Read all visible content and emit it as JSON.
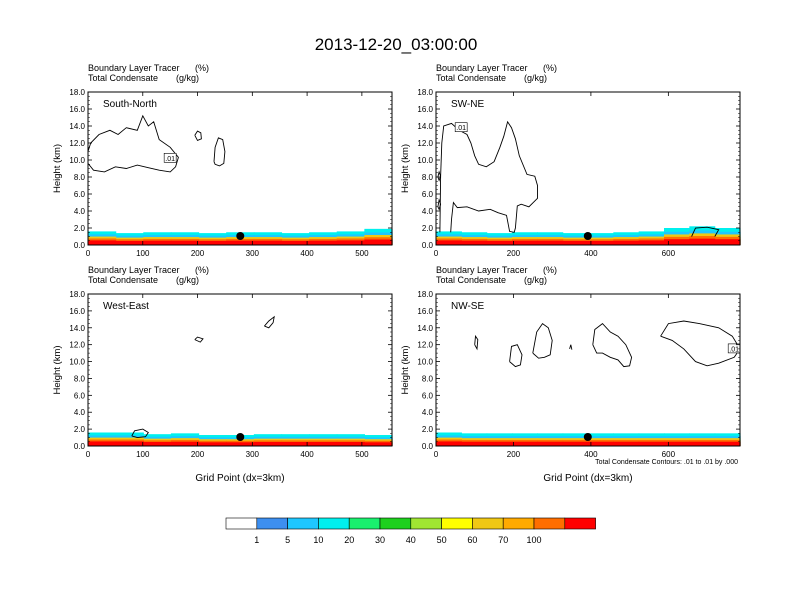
{
  "figure": {
    "title": "2013-12-20_03:00:00",
    "footnote": "Total Condensate Contours: .01 to .01 by .000"
  },
  "chart_data": [
    {
      "type": "heatmap",
      "panel": "South-North",
      "subtitle_left": "Boundary Layer Tracer",
      "subtitle_left_unit": "(%)",
      "subtitle_left2": "Total Condensate",
      "subtitle_left2_unit": "(g/kg)",
      "xlabel": "",
      "ylabel": "Height (km)",
      "xlim": [
        0,
        555
      ],
      "ylim": [
        0,
        18
      ],
      "xticks": [
        "0",
        "100",
        "200",
        "300",
        "400",
        "500"
      ],
      "xtick_values": [
        0,
        100,
        200,
        300,
        400,
        500
      ],
      "yticks": [
        "0.0",
        "2.0",
        "4.0",
        "6.0",
        "8.0",
        "10.0",
        "12.0",
        "14.0",
        "16.0",
        "18.0"
      ],
      "tracer_top_km": [
        1.6,
        1.4,
        1.5,
        1.5,
        1.4,
        1.5,
        1.5,
        1.4,
        1.5,
        1.6,
        1.9
      ],
      "marker_x": 278,
      "contour_label": ".01",
      "contour_label_x": 150,
      "contour_label_y": 10.2,
      "contours": [
        [
          [
            0,
            9.6
          ],
          [
            10,
            8.8
          ],
          [
            30,
            8.6
          ],
          [
            50,
            9.2
          ],
          [
            70,
            9.0
          ],
          [
            90,
            9.4
          ],
          [
            110,
            9.1
          ],
          [
            130,
            8.8
          ],
          [
            150,
            8.6
          ],
          [
            160,
            9.2
          ],
          [
            165,
            10.3
          ],
          [
            150,
            11.5
          ],
          [
            130,
            12.4
          ],
          [
            120,
            14.5
          ],
          [
            110,
            14.0
          ],
          [
            100,
            15.2
          ],
          [
            90,
            13.5
          ],
          [
            70,
            13.8
          ],
          [
            55,
            13.0
          ],
          [
            40,
            13.5
          ],
          [
            20,
            13.0
          ],
          [
            5,
            12.0
          ],
          [
            0,
            11.0
          ]
        ],
        [
          [
            195,
            12.9
          ],
          [
            200,
            13.4
          ],
          [
            206,
            13.2
          ],
          [
            207,
            12.5
          ],
          [
            200,
            12.3
          ],
          [
            195,
            12.9
          ]
        ],
        [
          [
            230,
            9.8
          ],
          [
            232,
            11.5
          ],
          [
            238,
            12.6
          ],
          [
            246,
            12.4
          ],
          [
            250,
            11.0
          ],
          [
            248,
            9.6
          ],
          [
            240,
            9.3
          ],
          [
            232,
            9.5
          ],
          [
            230,
            9.8
          ]
        ]
      ]
    },
    {
      "type": "heatmap",
      "panel": "SW-NE",
      "subtitle_left": "Boundary Layer Tracer",
      "subtitle_left_unit": "(%)",
      "subtitle_left2": "Total Condensate",
      "subtitle_left2_unit": "(g/kg)",
      "xlabel": "",
      "ylabel": "Height (km)",
      "xlim": [
        0,
        785
      ],
      "ylim": [
        0,
        18
      ],
      "xticks": [
        "0",
        "200",
        "400",
        "600"
      ],
      "xtick_values": [
        0,
        200,
        400,
        600
      ],
      "yticks": [
        "0.0",
        "2.0",
        "4.0",
        "6.0",
        "8.0",
        "10.0",
        "12.0",
        "14.0",
        "16.0",
        "18.0"
      ],
      "tracer_top_km": [
        1.6,
        1.5,
        1.4,
        1.5,
        1.5,
        1.4,
        1.4,
        1.5,
        1.6,
        2.0,
        2.2,
        2.0
      ],
      "marker_x": 392,
      "contour_label": ".01",
      "contour_label_x": 65,
      "contour_label_y": 13.8,
      "contours": [
        [
          [
            10,
            1.5
          ],
          [
            12,
            8.0
          ],
          [
            15,
            12.0
          ],
          [
            20,
            14.0
          ],
          [
            40,
            14.3
          ],
          [
            60,
            13.5
          ],
          [
            80,
            13.0
          ],
          [
            90,
            12.0
          ],
          [
            100,
            10.5
          ],
          [
            110,
            9.5
          ],
          [
            130,
            9.2
          ],
          [
            150,
            9.8
          ],
          [
            165,
            11.5
          ],
          [
            175,
            12.8
          ],
          [
            185,
            14.5
          ],
          [
            195,
            13.8
          ],
          [
            205,
            12.5
          ],
          [
            215,
            10.5
          ],
          [
            235,
            8.3
          ],
          [
            255,
            8.1
          ],
          [
            262,
            7.0
          ],
          [
            262,
            5.5
          ],
          [
            240,
            4.5
          ],
          [
            220,
            4.8
          ],
          [
            210,
            4.6
          ],
          [
            205,
            2.0
          ],
          [
            202,
            1.5
          ],
          [
            190,
            1.6
          ],
          [
            182,
            3.5
          ],
          [
            160,
            3.8
          ],
          [
            140,
            4.2
          ],
          [
            110,
            4.0
          ],
          [
            80,
            4.5
          ],
          [
            55,
            4.4
          ],
          [
            45,
            5.0
          ],
          [
            40,
            3.0
          ],
          [
            38,
            1.5
          ]
        ],
        [
          [
            5,
            4.5
          ],
          [
            8,
            5.3
          ],
          [
            12,
            4.8
          ],
          [
            8,
            4.2
          ],
          [
            5,
            4.5
          ]
        ],
        [
          [
            5,
            8.0
          ],
          [
            8,
            8.6
          ],
          [
            12,
            8.1
          ],
          [
            8,
            7.6
          ],
          [
            5,
            8.0
          ]
        ],
        [
          [
            660,
            1.0
          ],
          [
            670,
            2.0
          ],
          [
            700,
            2.1
          ],
          [
            730,
            1.8
          ],
          [
            720,
            1.0
          ]
        ]
      ]
    },
    {
      "type": "heatmap",
      "panel": "West-East",
      "subtitle_left": "Boundary Layer Tracer",
      "subtitle_left_unit": "(%)",
      "subtitle_left2": "Total Condensate",
      "subtitle_left2_unit": "(g/kg)",
      "xlabel": "Grid Point (dx=3km)",
      "ylabel": "Height (km)",
      "xlim": [
        0,
        555
      ],
      "ylim": [
        0,
        18
      ],
      "xticks": [
        "0",
        "100",
        "200",
        "300",
        "400",
        "500"
      ],
      "xtick_values": [
        0,
        100,
        200,
        300,
        400,
        500
      ],
      "yticks": [
        "0.0",
        "2.0",
        "4.0",
        "6.0",
        "8.0",
        "10.0",
        "12.0",
        "14.0",
        "16.0",
        "18.0"
      ],
      "tracer_top_km": [
        1.6,
        1.6,
        1.4,
        1.5,
        1.3,
        1.3,
        1.4,
        1.4,
        1.4,
        1.4,
        1.3
      ],
      "marker_x": 278,
      "contour_label": "",
      "contours": [
        [
          [
            80,
            1.2
          ],
          [
            85,
            1.8
          ],
          [
            100,
            2.0
          ],
          [
            110,
            1.6
          ],
          [
            105,
            1.1
          ],
          [
            90,
            1.0
          ],
          [
            80,
            1.2
          ]
        ],
        [
          [
            195,
            12.6
          ],
          [
            200,
            12.9
          ],
          [
            210,
            12.7
          ],
          [
            205,
            12.3
          ],
          [
            195,
            12.6
          ]
        ],
        [
          [
            322,
            14.2
          ],
          [
            330,
            14.8
          ],
          [
            340,
            15.3
          ],
          [
            338,
            14.6
          ],
          [
            330,
            14.0
          ],
          [
            322,
            14.2
          ]
        ]
      ]
    },
    {
      "type": "heatmap",
      "panel": "NW-SE",
      "subtitle_left": "Boundary Layer Tracer",
      "subtitle_left_unit": "(%)",
      "subtitle_left2": "Total Condensate",
      "subtitle_left2_unit": "(g/kg)",
      "xlabel": "Grid Point (dx=3km)",
      "ylabel": "Height (km)",
      "xlim": [
        0,
        785
      ],
      "ylim": [
        0,
        18
      ],
      "xticks": [
        "0",
        "200",
        "400",
        "600"
      ],
      "xtick_values": [
        0,
        200,
        400,
        600
      ],
      "yticks": [
        "0.0",
        "2.0",
        "4.0",
        "6.0",
        "8.0",
        "10.0",
        "12.0",
        "14.0",
        "16.0",
        "18.0"
      ],
      "tracer_top_km": [
        1.6,
        1.5,
        1.5,
        1.5,
        1.5,
        1.5,
        1.5,
        1.5,
        1.5,
        1.5,
        1.5,
        1.5
      ],
      "marker_x": 392,
      "contour_label": ".01",
      "contour_label_x": 770,
      "contour_label_y": 11.5,
      "contours": [
        [
          [
            100,
            12.0
          ],
          [
            102,
            13.0
          ],
          [
            108,
            12.6
          ],
          [
            106,
            11.5
          ],
          [
            100,
            12.0
          ]
        ],
        [
          [
            190,
            10.0
          ],
          [
            195,
            11.8
          ],
          [
            210,
            12.0
          ],
          [
            222,
            10.8
          ],
          [
            218,
            9.6
          ],
          [
            205,
            9.4
          ],
          [
            190,
            10.0
          ]
        ],
        [
          [
            250,
            11.0
          ],
          [
            260,
            13.5
          ],
          [
            275,
            14.5
          ],
          [
            290,
            14.0
          ],
          [
            300,
            12.5
          ],
          [
            295,
            10.8
          ],
          [
            280,
            10.5
          ],
          [
            265,
            10.4
          ],
          [
            250,
            11.0
          ]
        ],
        [
          [
            345,
            11.5
          ],
          [
            348,
            12.0
          ],
          [
            351,
            11.4
          ]
        ],
        [
          [
            405,
            12.0
          ],
          [
            410,
            13.8
          ],
          [
            430,
            14.5
          ],
          [
            450,
            13.5
          ],
          [
            470,
            13.0
          ],
          [
            490,
            12.0
          ],
          [
            505,
            10.5
          ],
          [
            500,
            9.5
          ],
          [
            485,
            9.4
          ],
          [
            470,
            10.2
          ],
          [
            450,
            10.5
          ],
          [
            430,
            11.0
          ],
          [
            415,
            11.0
          ],
          [
            405,
            12.0
          ]
        ],
        [
          [
            580,
            13.0
          ],
          [
            600,
            14.5
          ],
          [
            640,
            14.8
          ],
          [
            680,
            14.5
          ],
          [
            730,
            14.0
          ],
          [
            765,
            13.0
          ],
          [
            785,
            11.5
          ],
          [
            770,
            10.5
          ],
          [
            730,
            9.8
          ],
          [
            700,
            9.5
          ],
          [
            670,
            10.0
          ],
          [
            640,
            11.5
          ],
          [
            610,
            12.5
          ],
          [
            580,
            13.0
          ]
        ]
      ]
    }
  ],
  "colorbar": {
    "colors": [
      "#ffffff",
      "#3d8ff0",
      "#1ec7ff",
      "#00f0ee",
      "#19f06e",
      "#1ed01e",
      "#a0e632",
      "#ffff00",
      "#f0c814",
      "#ffaa00",
      "#ff6e00",
      "#ff0000"
    ],
    "labels": [
      "1",
      "5",
      "10",
      "20",
      "30",
      "40",
      "50",
      "60",
      "70",
      "100"
    ]
  }
}
